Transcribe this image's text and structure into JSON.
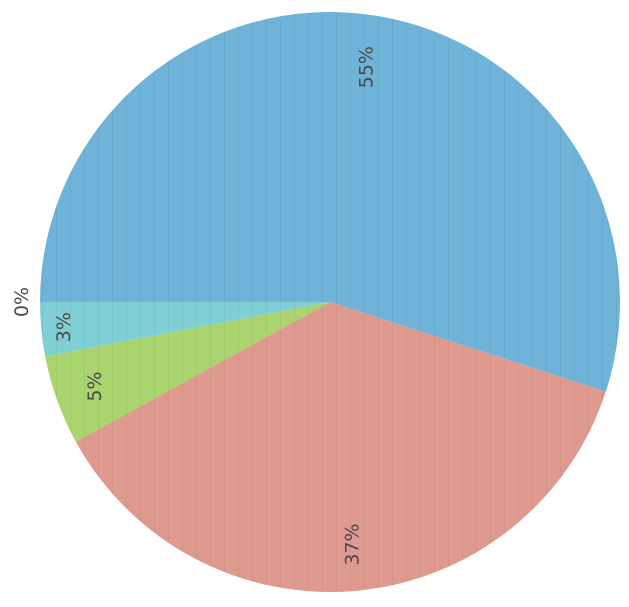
{
  "chart_data": {
    "type": "pie",
    "slices": [
      {
        "label": "55%",
        "value": 55,
        "color": "#6fb3d8"
      },
      {
        "label": "37%",
        "value": 37,
        "color": "#de9a8f"
      },
      {
        "label": "5%",
        "value": 5,
        "color": "#a9d46e"
      },
      {
        "label": "3%",
        "value": 3,
        "color": "#7fcfd4"
      },
      {
        "label": "0%",
        "value": 0,
        "color": "#7fcfd4"
      }
    ]
  }
}
